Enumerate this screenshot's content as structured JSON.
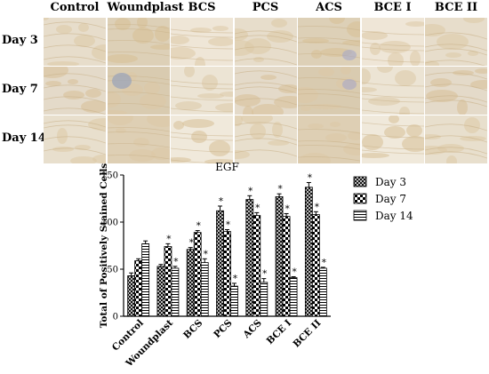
{
  "figure": {
    "columns": [
      "Control",
      "Woundplast",
      "BCS",
      "PCS",
      "ACS",
      "BCE I",
      "BCE II"
    ],
    "rows": [
      "Day 3",
      "Day 7",
      "Day 14"
    ]
  },
  "chart_data": {
    "type": "bar",
    "title": "EGF",
    "xlabel": "",
    "ylabel": "Total of Positively Stained Cells",
    "ylim": [
      0,
      150
    ],
    "yticks": [
      0,
      50,
      100,
      150
    ],
    "categories": [
      "Control",
      "Woundplast",
      "BCS",
      "PCS",
      "ACS",
      "BCE I",
      "BCE II"
    ],
    "series": [
      {
        "name": "Day 3",
        "pattern": "crosshatch",
        "values": [
          43,
          53,
          71,
          112,
          124,
          127,
          137
        ],
        "errors": [
          3,
          2,
          2,
          5,
          4,
          3,
          5
        ],
        "significant": [
          false,
          false,
          true,
          true,
          true,
          true,
          true
        ]
      },
      {
        "name": "Day 7",
        "pattern": "checkerboard",
        "values": [
          59,
          74,
          89,
          90,
          107,
          106,
          108
        ],
        "errors": [
          2,
          3,
          2,
          2,
          3,
          3,
          3
        ],
        "significant": [
          false,
          true,
          true,
          true,
          true,
          true,
          true
        ]
      },
      {
        "name": "Day 14",
        "pattern": "horizontal",
        "values": [
          77,
          51,
          57,
          32,
          36,
          41,
          51
        ],
        "errors": [
          3,
          2,
          4,
          3,
          4,
          1,
          1
        ],
        "significant": [
          false,
          true,
          true,
          true,
          true,
          true,
          true
        ]
      }
    ],
    "significance_marker": "*",
    "legend_position": "right",
    "colors": {
      "bar_fill": "#ffffff",
      "bar_stroke": "#000000",
      "axis": "#000000"
    }
  }
}
